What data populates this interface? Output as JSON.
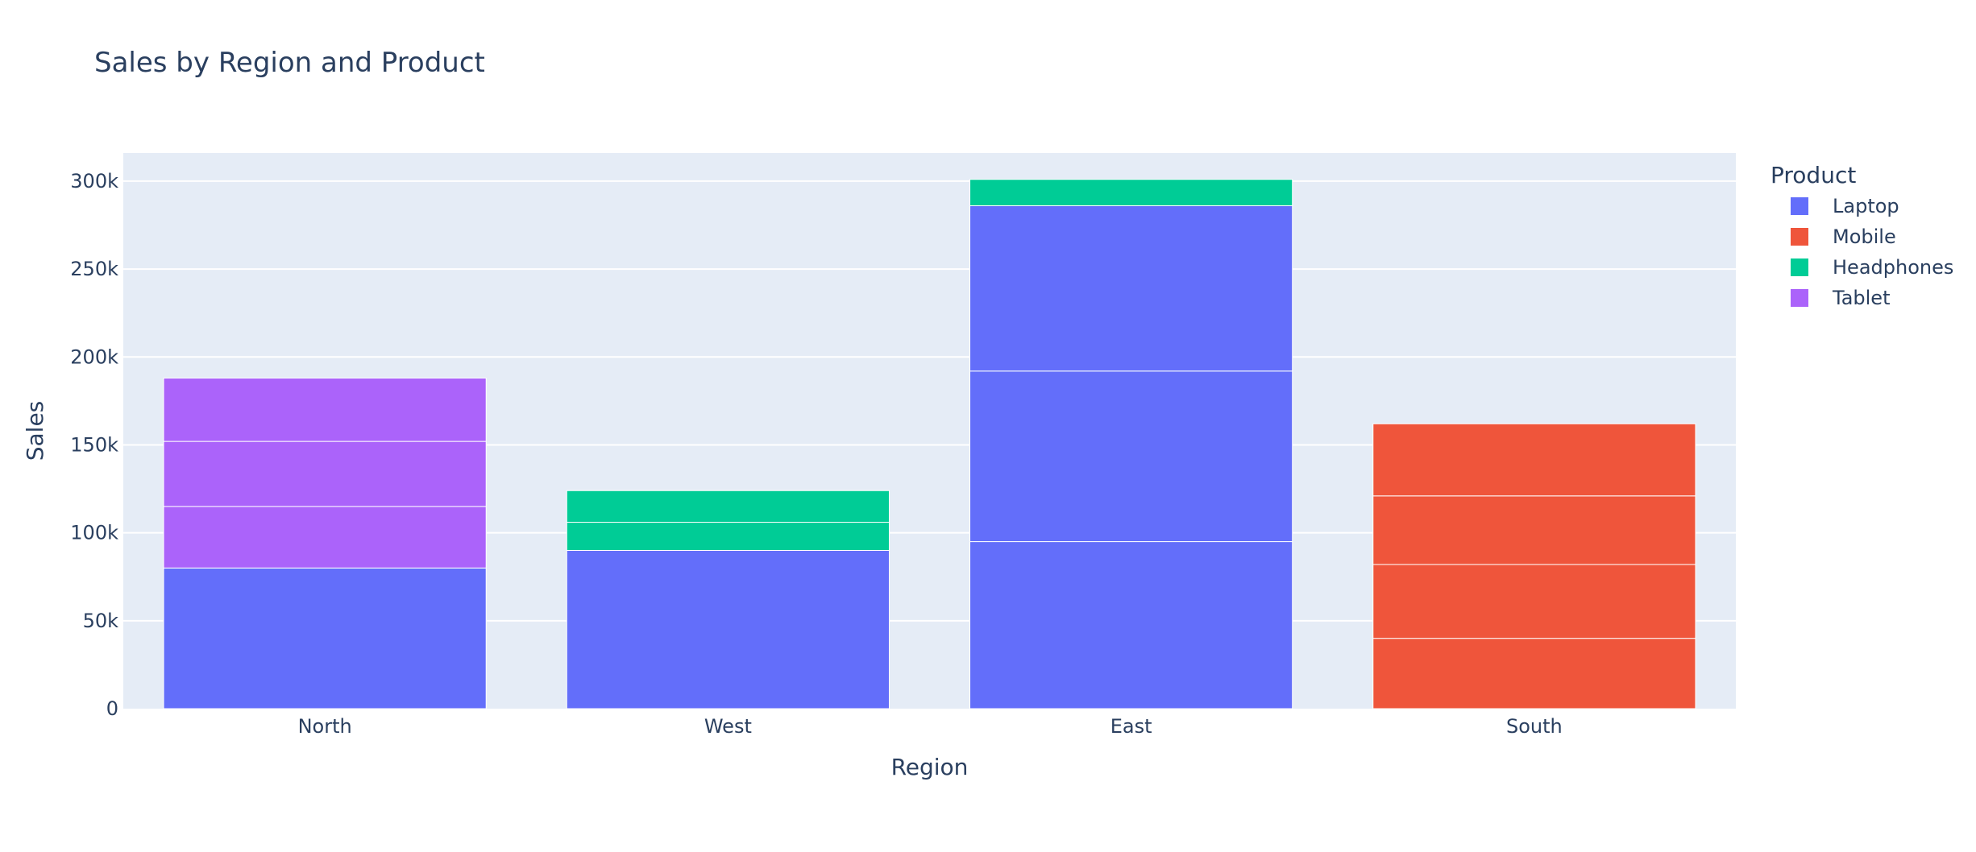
{
  "chart_data": {
    "type": "bar",
    "barmode": "stack",
    "title": "Sales by Region and Product",
    "xlabel": "Region",
    "ylabel": "Sales",
    "categories": [
      "North",
      "West",
      "East",
      "South"
    ],
    "ylim": [
      0,
      316000
    ],
    "yticks": [
      {
        "value": 0,
        "label": "0"
      },
      {
        "value": 50000,
        "label": "50k"
      },
      {
        "value": 100000,
        "label": "100k"
      },
      {
        "value": 150000,
        "label": "150k"
      },
      {
        "value": 200000,
        "label": "200k"
      },
      {
        "value": 250000,
        "label": "250k"
      },
      {
        "value": 300000,
        "label": "300k"
      }
    ],
    "grid": true,
    "legend": {
      "title": "Product",
      "placement": "top-right",
      "items": [
        {
          "name": "Laptop",
          "color": "#636efa"
        },
        {
          "name": "Mobile",
          "color": "#ef553b"
        },
        {
          "name": "Headphones",
          "color": "#00cc96"
        },
        {
          "name": "Tablet",
          "color": "#ab63fa"
        }
      ]
    },
    "segments": [
      {
        "category": "North",
        "product": "Laptop",
        "value": 80000
      },
      {
        "category": "North",
        "product": "Tablet",
        "value": 35000
      },
      {
        "category": "North",
        "product": "Tablet",
        "value": 37000
      },
      {
        "category": "North",
        "product": "Tablet",
        "value": 36000
      },
      {
        "category": "West",
        "product": "Laptop",
        "value": 90000
      },
      {
        "category": "West",
        "product": "Headphones",
        "value": 16000
      },
      {
        "category": "West",
        "product": "Headphones",
        "value": 18000
      },
      {
        "category": "East",
        "product": "Laptop",
        "value": 95000
      },
      {
        "category": "East",
        "product": "Laptop",
        "value": 97000
      },
      {
        "category": "East",
        "product": "Laptop",
        "value": 94000
      },
      {
        "category": "East",
        "product": "Headphones",
        "value": 15000
      },
      {
        "category": "South",
        "product": "Mobile",
        "value": 40000
      },
      {
        "category": "South",
        "product": "Mobile",
        "value": 42000
      },
      {
        "category": "South",
        "product": "Mobile",
        "value": 39000
      },
      {
        "category": "South",
        "product": "Mobile",
        "value": 41000
      }
    ],
    "colors": {
      "plot_background": "#e5ecf6",
      "gridline": "#ffffff",
      "text": "#2a3f5f"
    }
  }
}
